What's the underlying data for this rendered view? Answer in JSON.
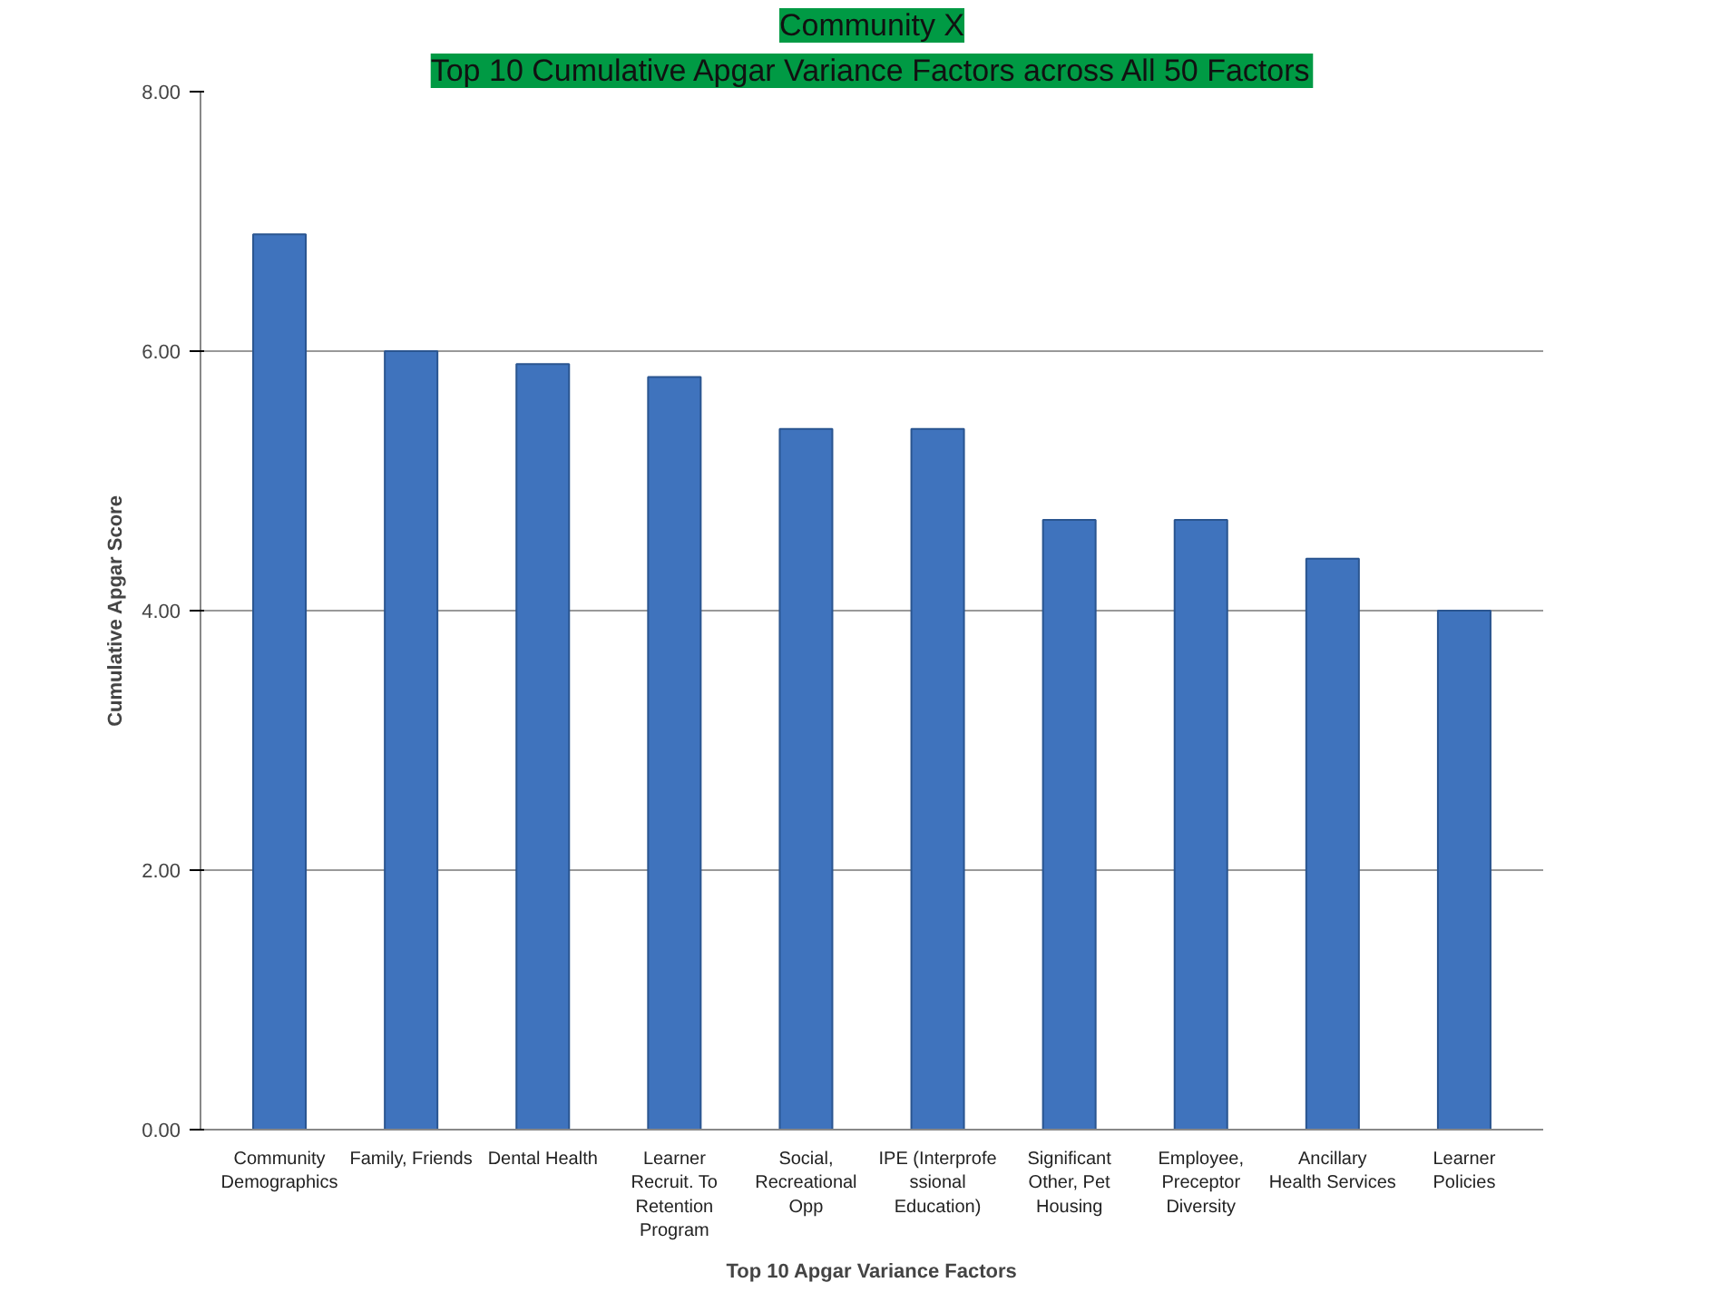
{
  "chart_data": {
    "type": "bar",
    "title": "Community X",
    "subtitle": "Top 10 Cumulative Apgar Variance Factors across All 50 Factors",
    "xlabel": "Top 10 Apgar Variance Factors",
    "ylabel": "Cumulative Apgar Score",
    "categories": [
      "Community Demographics",
      "Family, Friends",
      "Dental Health",
      "Learner Recruit. To Retention Program",
      "Social, Recreational Opp",
      "IPE (Interprofessional Education)",
      "Significant Other, Pet Housing",
      "Employee, Preceptor Diversity",
      "Ancillary Health Services",
      "Learner Policies"
    ],
    "values": [
      6.9,
      6.0,
      5.9,
      5.8,
      5.4,
      5.4,
      4.7,
      4.7,
      4.4,
      4.0
    ],
    "color": "#3f73bd",
    "ylim": [
      0,
      8
    ],
    "yticks": [
      {
        "value": 0,
        "label": "0.00"
      },
      {
        "value": 2,
        "label": "2.00"
      },
      {
        "value": 4,
        "label": "4.00"
      },
      {
        "value": 6,
        "label": "6.00"
      },
      {
        "value": 8,
        "label": "8.00"
      }
    ],
    "grid": "y"
  }
}
